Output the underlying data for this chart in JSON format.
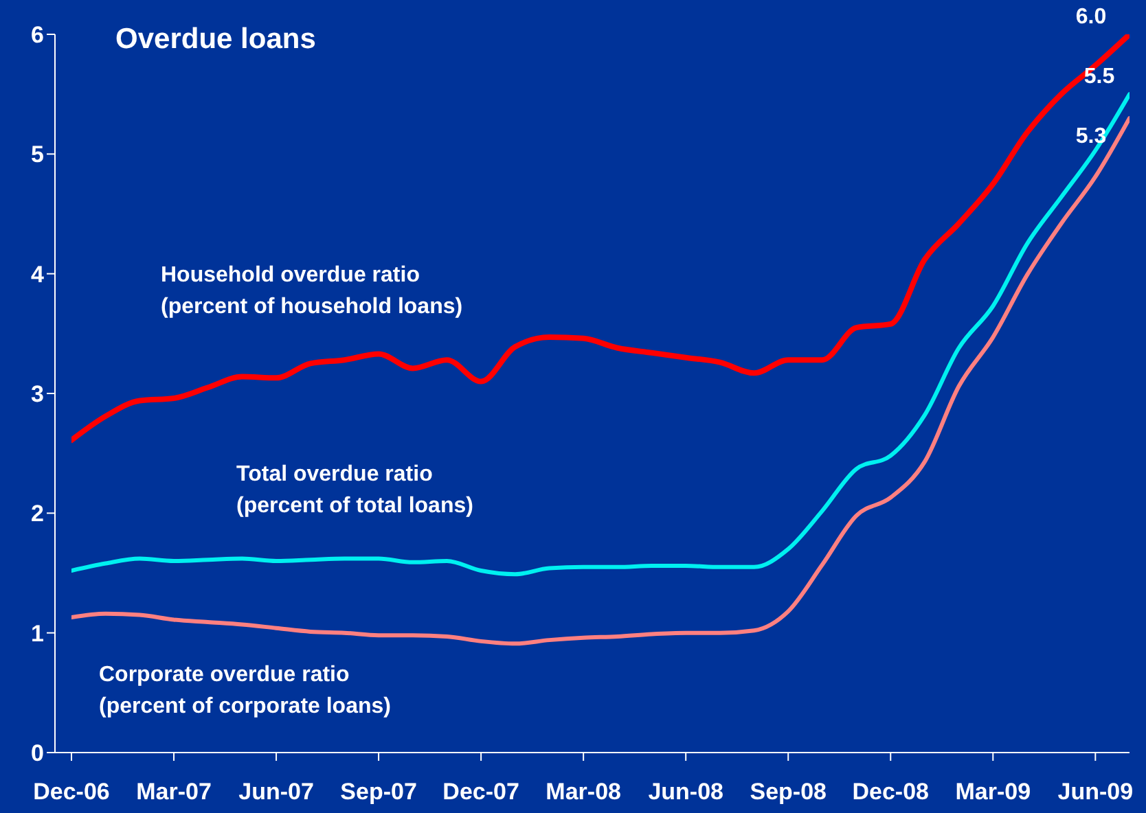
{
  "chart_data": {
    "type": "line",
    "title": "Overdue loans",
    "categories": [
      "Dec-06",
      null,
      null,
      "Mar-07",
      null,
      null,
      "Jun-07",
      null,
      null,
      "Sep-07",
      null,
      null,
      "Dec-07",
      null,
      null,
      "Mar-08",
      null,
      null,
      "Jun-08",
      null,
      null,
      "Sep-08",
      null,
      null,
      "Dec-08",
      null,
      null,
      "Mar-09",
      null,
      null,
      "Jun-09",
      null
    ],
    "series": [
      {
        "name": "Household overdue ratio\n(percent of household loans)",
        "color": "#ff0000",
        "values": [
          2.61,
          2.81,
          2.94,
          2.96,
          3.05,
          3.14,
          3.13,
          3.25,
          3.28,
          3.33,
          3.21,
          3.28,
          3.1,
          3.39,
          3.47,
          3.46,
          3.38,
          3.34,
          3.3,
          3.26,
          3.17,
          3.28,
          3.28,
          3.55,
          3.58,
          4.12,
          4.42,
          4.75,
          5.18,
          5.5,
          5.74,
          6.0
        ],
        "value_labels": [
          null,
          null,
          null,
          null,
          null,
          null,
          null,
          null,
          null,
          null,
          null,
          null,
          null,
          null,
          null,
          null,
          null,
          null,
          null,
          null,
          null,
          null,
          null,
          null,
          null,
          null,
          null,
          null,
          null,
          null,
          null,
          "6.0"
        ]
      },
      {
        "name": "Total overdue ratio\n(percent of total loans)",
        "color": "#00f0f0",
        "values": [
          1.52,
          1.58,
          1.62,
          1.6,
          1.61,
          1.62,
          1.6,
          1.61,
          1.62,
          1.62,
          1.59,
          1.6,
          1.52,
          1.49,
          1.54,
          1.55,
          1.55,
          1.56,
          1.56,
          1.55,
          1.55,
          1.7,
          2.02,
          2.37,
          2.48,
          2.82,
          3.38,
          3.73,
          4.25,
          4.64,
          5.03,
          5.5
        ],
        "value_labels": [
          null,
          null,
          null,
          null,
          null,
          null,
          null,
          null,
          null,
          null,
          null,
          null,
          null,
          null,
          null,
          null,
          null,
          null,
          null,
          null,
          null,
          null,
          null,
          null,
          null,
          null,
          null,
          null,
          null,
          null,
          null,
          "5.5"
        ]
      },
      {
        "name": "Corporate overdue ratio\n(percent of corporate loans)",
        "color": "#ff8080",
        "values": [
          1.13,
          1.16,
          1.15,
          1.11,
          1.09,
          1.07,
          1.04,
          1.01,
          1.0,
          0.98,
          0.98,
          0.97,
          0.93,
          0.91,
          0.94,
          0.96,
          0.97,
          0.99,
          1.0,
          1.0,
          1.02,
          1.18,
          1.57,
          1.98,
          2.13,
          2.43,
          3.06,
          3.47,
          3.99,
          4.42,
          4.81,
          5.3
        ],
        "value_labels": [
          null,
          null,
          null,
          null,
          null,
          null,
          null,
          null,
          null,
          null,
          null,
          null,
          null,
          null,
          null,
          null,
          null,
          null,
          null,
          null,
          null,
          null,
          null,
          null,
          null,
          null,
          null,
          null,
          null,
          null,
          null,
          "5.3"
        ]
      }
    ],
    "ylim": [
      0,
      6
    ],
    "yticks": [
      0,
      1,
      2,
      3,
      4,
      5,
      6
    ],
    "grid": false,
    "legend": false,
    "marker": "none",
    "line_style": "solid"
  }
}
